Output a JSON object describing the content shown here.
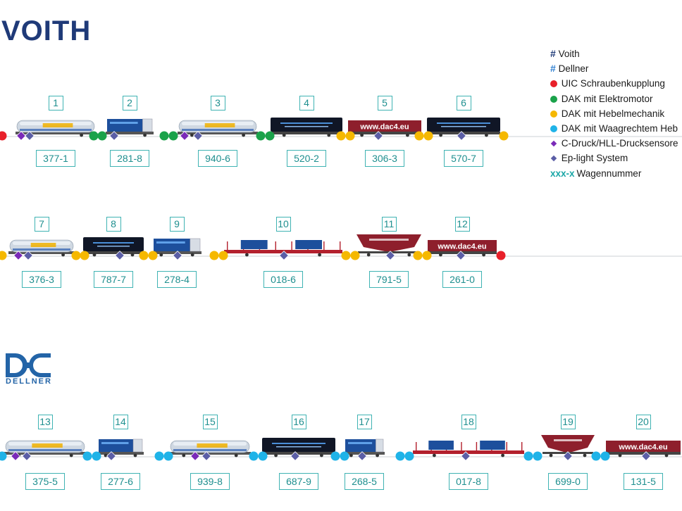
{
  "brand": {
    "voith": "VOITH",
    "dellner": "DELLNER"
  },
  "colors": {
    "uic": "#e8202a",
    "dak_elektro": "#1aa24a",
    "dak_hebel": "#f5b800",
    "dak_waagrecht": "#1fb3e8",
    "c_druck": "#7a2ab8",
    "ep_light": "#5b5ea6",
    "voith_hash": "#1f3a78",
    "dellner_hash": "#2f7fd0",
    "wagennummer": "#1aa6a6",
    "box_border": "#3fb3b3"
  },
  "legend": [
    {
      "symbol": "#",
      "kind": "hash-voith",
      "label": "Voith"
    },
    {
      "symbol": "#",
      "kind": "hash-dellner",
      "label": "Dellner"
    },
    {
      "symbol": "circle",
      "kind": "uic",
      "label": "UIC Schraubenkupplung"
    },
    {
      "symbol": "circle",
      "kind": "dak_elektro",
      "label": "DAK mit Elektromotor"
    },
    {
      "symbol": "circle",
      "kind": "dak_hebel",
      "label": "DAK mit Hebelmechanik"
    },
    {
      "symbol": "circle",
      "kind": "dak_waagrecht",
      "label": "DAK mit Waagrechtem Heb"
    },
    {
      "symbol": "diamond",
      "kind": "c_druck",
      "label": "C-Druck/HLL-Drucksensore"
    },
    {
      "symbol": "diamond",
      "kind": "ep_light",
      "label": "Ep-light System"
    },
    {
      "symbol": "xxx-x",
      "kind": "wagennummer",
      "label": "Wagennummer"
    }
  ],
  "wagons": [
    {
      "idx": "1",
      "wagen": "377-1",
      "type": "tank"
    },
    {
      "idx": "2",
      "wagen": "281-8",
      "type": "box"
    },
    {
      "idx": "3",
      "wagen": "940-6",
      "type": "tank"
    },
    {
      "idx": "4",
      "wagen": "520-2",
      "type": "black"
    },
    {
      "idx": "5",
      "wagen": "306-3",
      "type": "red",
      "text": "www.dac4.eu"
    },
    {
      "idx": "6",
      "wagen": "570-7",
      "type": "black"
    },
    {
      "idx": "7",
      "wagen": "376-3",
      "type": "tank"
    },
    {
      "idx": "8",
      "wagen": "787-7",
      "type": "black"
    },
    {
      "idx": "9",
      "wagen": "278-4",
      "type": "box"
    },
    {
      "idx": "10",
      "wagen": "018-6",
      "type": "flat"
    },
    {
      "idx": "11",
      "wagen": "791-5",
      "type": "hopper"
    },
    {
      "idx": "12",
      "wagen": "261-0",
      "type": "red",
      "text": "www.dac4.eu"
    },
    {
      "idx": "13",
      "wagen": "375-5",
      "type": "tank"
    },
    {
      "idx": "14",
      "wagen": "277-6",
      "type": "box"
    },
    {
      "idx": "15",
      "wagen": "939-8",
      "type": "tank"
    },
    {
      "idx": "16",
      "wagen": "687-9",
      "type": "black"
    },
    {
      "idx": "17",
      "wagen": "268-5",
      "type": "box"
    },
    {
      "idx": "18",
      "wagen": "017-8",
      "type": "flat"
    },
    {
      "idx": "19",
      "wagen": "699-0",
      "type": "hopper"
    },
    {
      "idx": "20",
      "wagen": "131-5",
      "type": "red",
      "text": "www.dac4.eu"
    }
  ]
}
